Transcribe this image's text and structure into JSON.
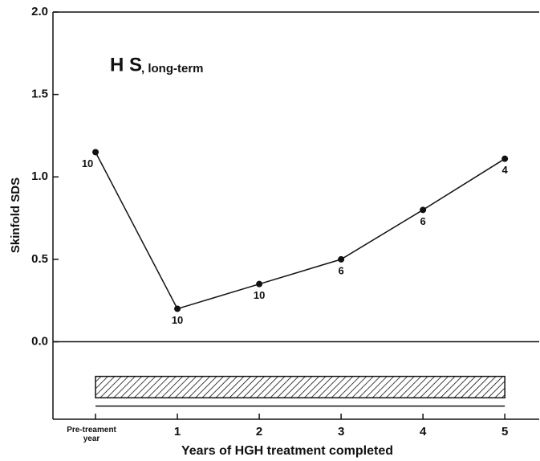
{
  "chart_data": {
    "type": "line",
    "title": "H S",
    "subtitle": ", long-term",
    "ylabel": "Skinfold SDS",
    "xlabel": "Years of HGH treatment completed",
    "x": [
      0,
      1,
      2,
      3,
      4,
      5
    ],
    "series": [
      {
        "name": "HS",
        "color": "#111111",
        "values": [
          1.15,
          0.2,
          0.35,
          0.5,
          0.8,
          1.11
        ]
      }
    ],
    "n_labels": [
      10,
      10,
      10,
      6,
      6,
      4
    ],
    "xlim": [
      -0.52,
      5.42
    ],
    "ylim": [
      -0.47,
      2.0
    ],
    "xticks": [
      {
        "value": 0,
        "label": "Pre-treament year"
      },
      1,
      2,
      3,
      4,
      5
    ],
    "yticks": [
      {
        "value": 0,
        "label": "0.0"
      },
      {
        "value": 0.5,
        "label": "0.5"
      },
      {
        "value": 1,
        "label": "1.0"
      },
      {
        "value": 1.5,
        "label": "1.5"
      },
      {
        "value": 2,
        "label": "2.0"
      }
    ]
  }
}
